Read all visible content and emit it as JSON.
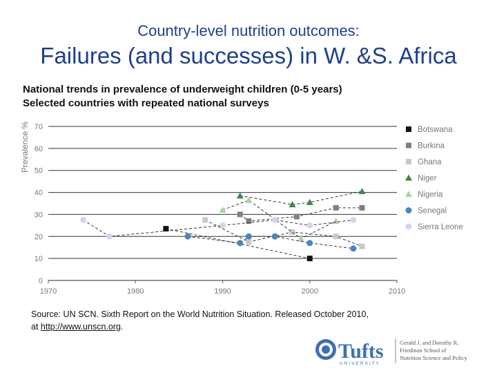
{
  "header": {
    "kicker": "Country-level nutrition outcomes:",
    "title": "Failures (and successes) in W. &S. Africa"
  },
  "chart_data": {
    "type": "line",
    "subtitle_1": "National trends in prevalence of underweight children (0-5 years)",
    "subtitle_2": "Selected countries with repeated national surveys",
    "ylabel": "Prevalence %",
    "xlabel": "",
    "xlim": [
      1970,
      2010
    ],
    "ylim": [
      0,
      70
    ],
    "xticks": [
      1970,
      1980,
      1990,
      2000,
      2010
    ],
    "yticks": [
      0,
      10,
      20,
      30,
      40,
      50,
      60,
      70
    ],
    "legend_position": "right",
    "series": [
      {
        "name": "Botswana",
        "color": "#111111",
        "marker": "square",
        "points": [
          [
            1983.5,
            23.5
          ],
          [
            2000,
            10
          ]
        ]
      },
      {
        "name": "Burkina",
        "color": "#808080",
        "marker": "square",
        "points": [
          [
            1992,
            30
          ],
          [
            1993,
            27
          ],
          [
            1998.5,
            29
          ],
          [
            2003,
            33
          ],
          [
            2006,
            33
          ]
        ]
      },
      {
        "name": "Ghana",
        "color": "#c8c8c8",
        "marker": "square",
        "points": [
          [
            1988,
            27.5
          ],
          [
            1993,
            17.5
          ],
          [
            1998,
            22
          ],
          [
            2003,
            20
          ],
          [
            2006,
            15.5
          ]
        ]
      },
      {
        "name": "Niger",
        "color": "#3a8a4a",
        "marker": "triangle",
        "points": [
          [
            1992,
            38.5
          ],
          [
            1998,
            34.5
          ],
          [
            2000,
            35.5
          ],
          [
            2006,
            40.5
          ]
        ]
      },
      {
        "name": "Nigeria",
        "color": "#a9d3a2",
        "marker": "triangle",
        "points": [
          [
            1990,
            32
          ],
          [
            1993,
            36.5
          ],
          [
            1999,
            19
          ],
          [
            2003,
            27
          ]
        ]
      },
      {
        "name": "Senegal",
        "color": "#4a85bf",
        "marker": "circle",
        "points": [
          [
            1986,
            20
          ],
          [
            1992,
            17
          ],
          [
            1993,
            20
          ],
          [
            1996,
            20
          ],
          [
            2000,
            17
          ],
          [
            2005,
            14.5
          ]
        ]
      },
      {
        "name": "Sierra Leone",
        "color": "#cdd9ea",
        "marker": "circle",
        "points": [
          [
            1974,
            27.5
          ],
          [
            1977,
            20
          ],
          [
            1990,
            25
          ],
          [
            1996,
            27.5
          ],
          [
            2000,
            25
          ],
          [
            2005,
            27.5
          ]
        ]
      }
    ]
  },
  "footer": {
    "source_text": "Source: UN SCN. Sixth Report on the World Nutrition Situation. Released October 2010,",
    "source_line2_prefix": "at ",
    "source_link": "http://www.unscn.org",
    "source_line2_suffix": "."
  },
  "logo": {
    "wordmark": "Tufts",
    "sub": "UNIVERSITY",
    "school_line1": "Gerald J. and Dorothy R.",
    "school_line2": "Friedman School of",
    "school_line3": "Nutrition Science and Policy"
  }
}
